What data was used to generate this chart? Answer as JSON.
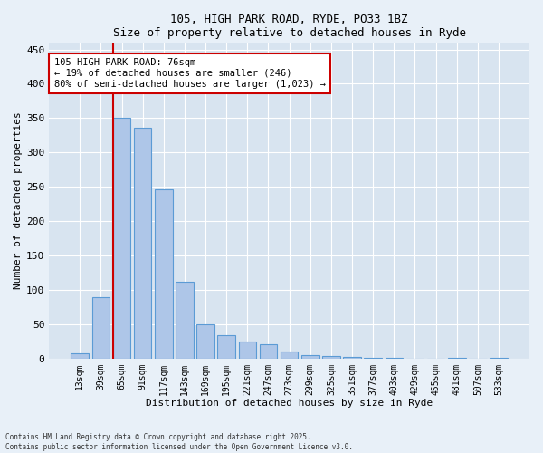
{
  "title1": "105, HIGH PARK ROAD, RYDE, PO33 1BZ",
  "title2": "Size of property relative to detached houses in Ryde",
  "xlabel": "Distribution of detached houses by size in Ryde",
  "ylabel": "Number of detached properties",
  "bar_color": "#aec6e8",
  "bar_edge_color": "#5b9bd5",
  "categories": [
    "13sqm",
    "39sqm",
    "65sqm",
    "91sqm",
    "117sqm",
    "143sqm",
    "169sqm",
    "195sqm",
    "221sqm",
    "247sqm",
    "273sqm",
    "299sqm",
    "325sqm",
    "351sqm",
    "377sqm",
    "403sqm",
    "429sqm",
    "455sqm",
    "481sqm",
    "507sqm",
    "533sqm"
  ],
  "values": [
    7,
    89,
    350,
    336,
    246,
    112,
    50,
    34,
    25,
    21,
    10,
    5,
    4,
    2,
    1,
    1,
    0,
    0,
    1,
    0,
    1
  ],
  "vline_x_idx": 2,
  "vline_color": "#cc0000",
  "annotation_text": "105 HIGH PARK ROAD: 76sqm\n← 19% of detached houses are smaller (246)\n80% of semi-detached houses are larger (1,023) →",
  "annotation_box_color": "#ffffff",
  "annotation_box_edge": "#cc0000",
  "ylim": [
    0,
    460
  ],
  "yticks": [
    0,
    50,
    100,
    150,
    200,
    250,
    300,
    350,
    400,
    450
  ],
  "footer": "Contains HM Land Registry data © Crown copyright and database right 2025.\nContains public sector information licensed under the Open Government Licence v3.0.",
  "bg_color": "#e8f0f8",
  "plot_bg_color": "#d8e4f0"
}
